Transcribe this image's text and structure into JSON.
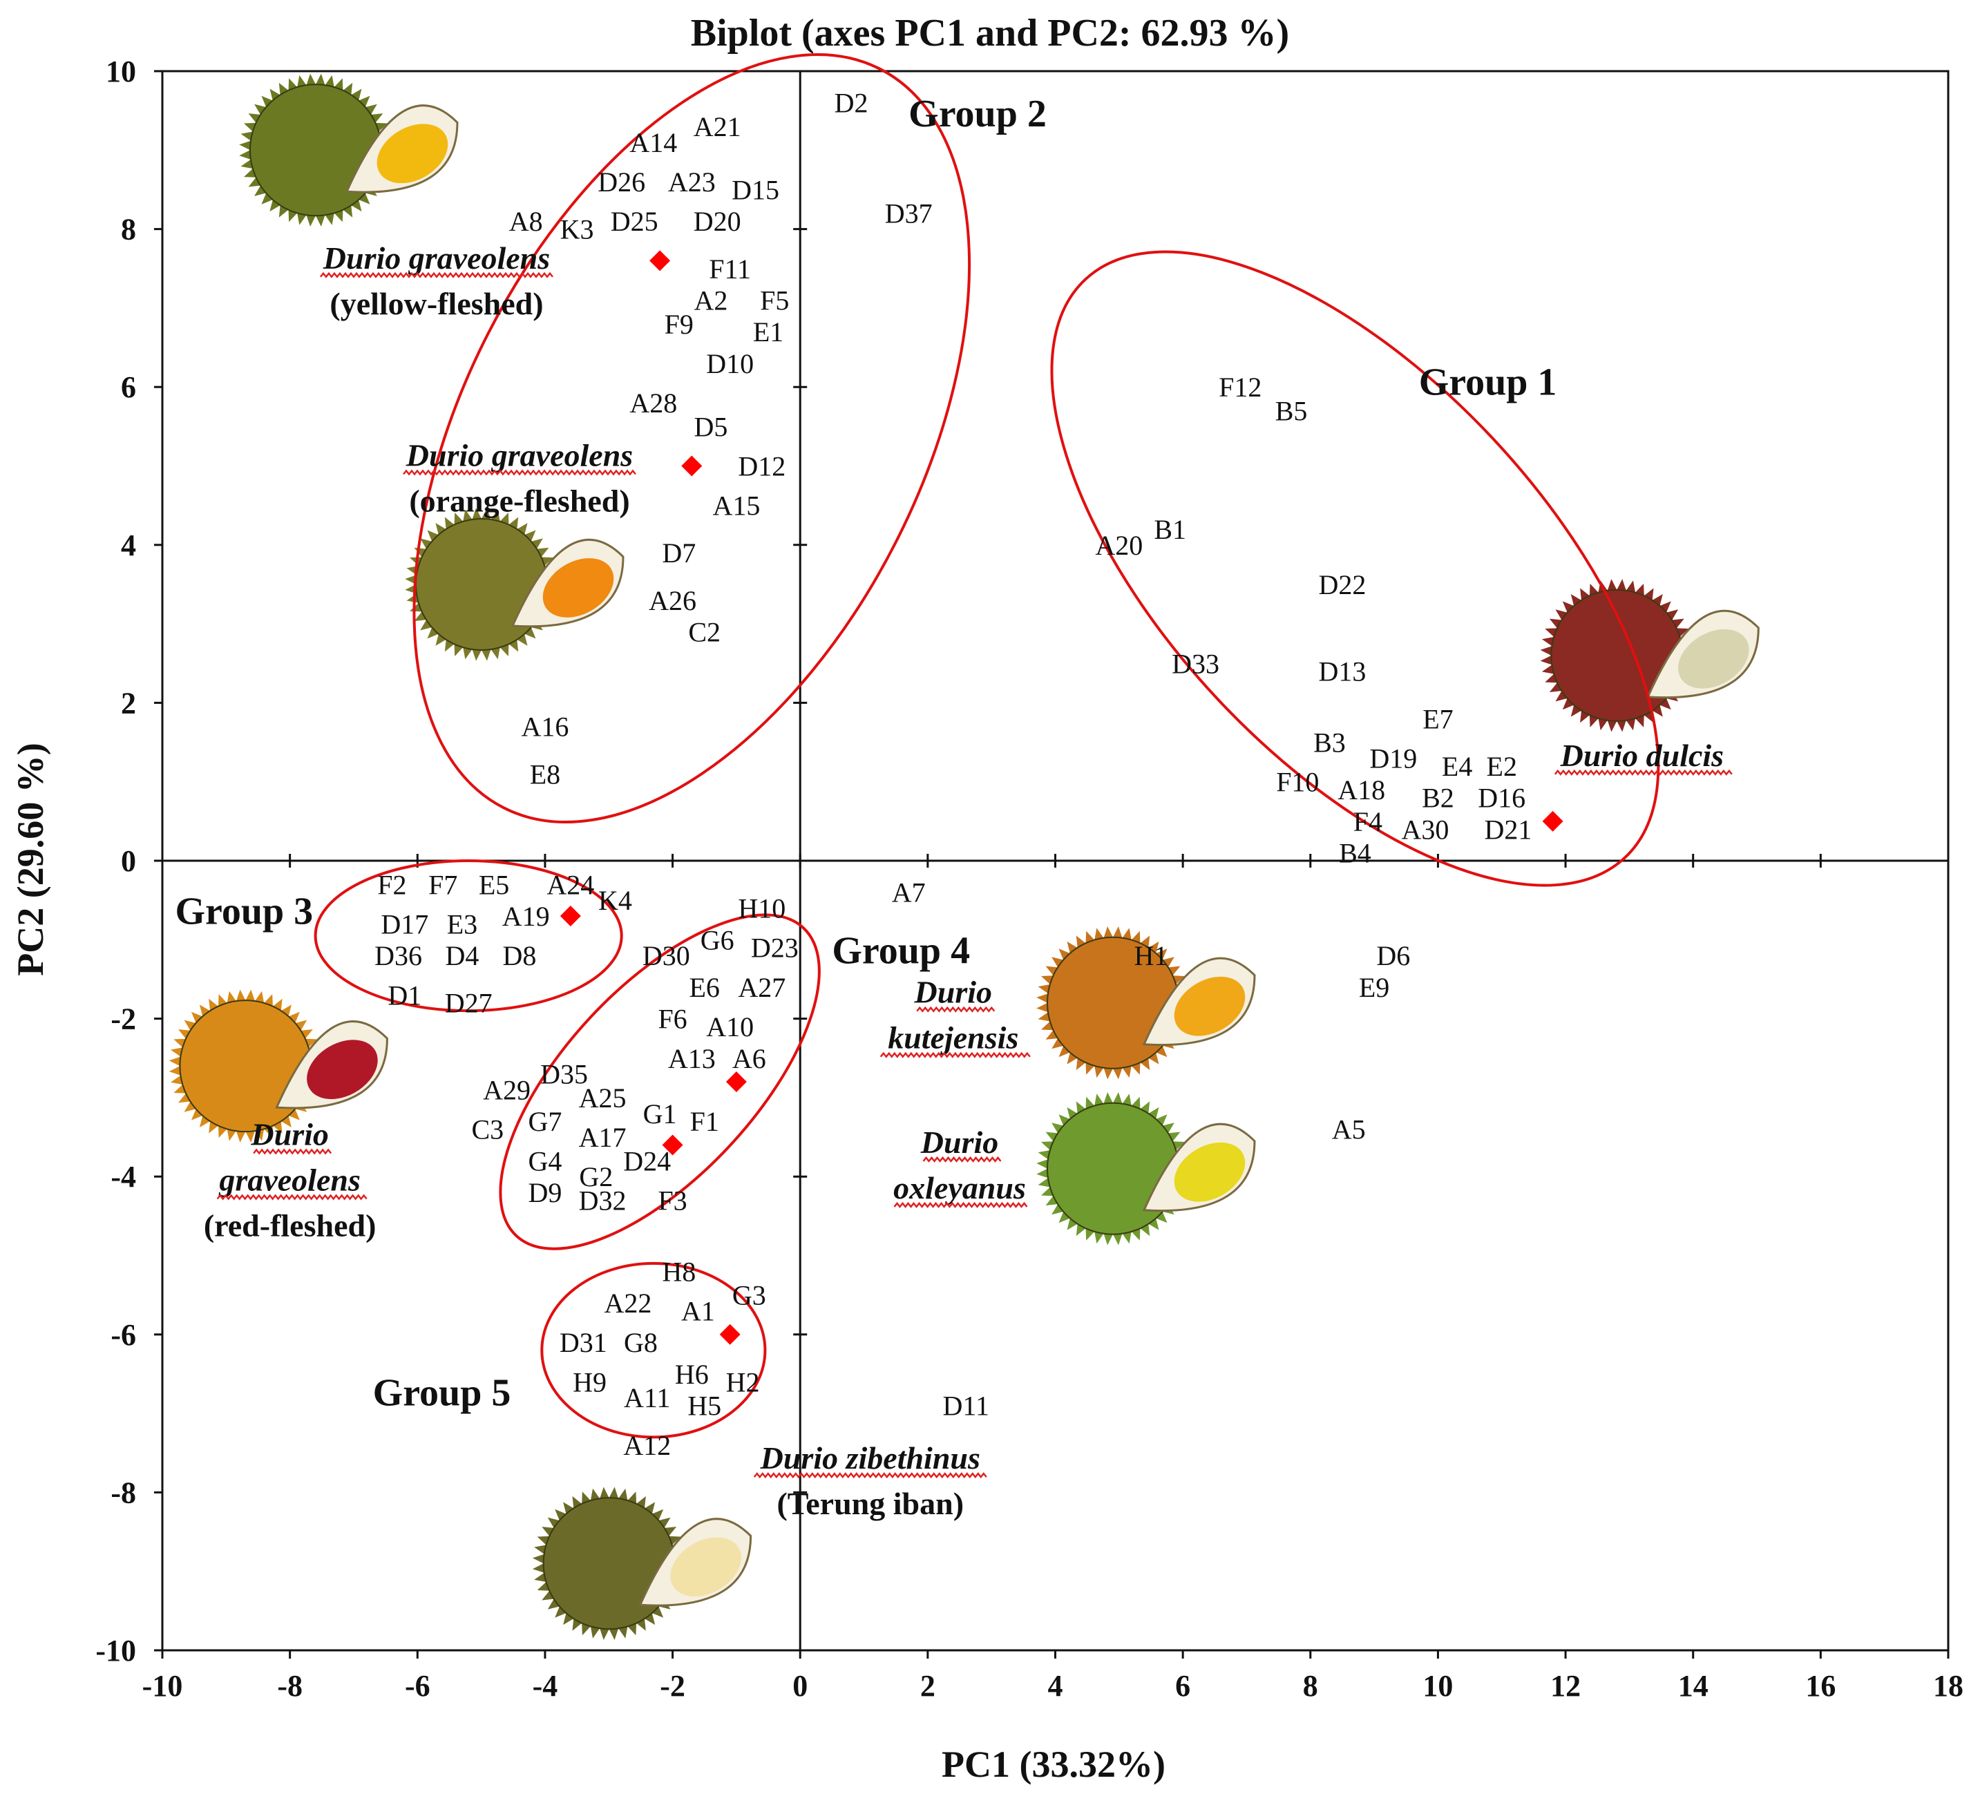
{
  "chart_data": {
    "type": "scatter",
    "title": "Biplot (axes PC1 and PC2: 62.93 %)",
    "xlabel": "PC1 (33.32%)",
    "ylabel": "PC2 (29.60 %)",
    "xlim": [
      -10,
      18
    ],
    "ylim": [
      -10,
      10
    ],
    "x_ticks": [
      -10,
      -8,
      -6,
      -4,
      -2,
      0,
      2,
      4,
      6,
      8,
      10,
      12,
      14,
      16,
      18
    ],
    "y_ticks": [
      -10,
      -8,
      -6,
      -4,
      -2,
      0,
      2,
      4,
      6,
      8,
      10
    ],
    "x_tick_labels": [
      "-10",
      "-8",
      "-6",
      "-4",
      "-2",
      "0",
      "2",
      "4",
      "6",
      "8",
      "10",
      "12",
      "14",
      "16",
      "18"
    ],
    "y_tick_labels": [
      "-10",
      "-8",
      "-6",
      "-4",
      "-2",
      "0",
      "2",
      "4",
      "6",
      "8",
      "10"
    ],
    "observations": [
      {
        "label": "A14",
        "x": -2.3,
        "y": 9.1
      },
      {
        "label": "A21",
        "x": -1.3,
        "y": 9.3
      },
      {
        "label": "D2",
        "x": 0.8,
        "y": 9.6
      },
      {
        "label": "D26",
        "x": -2.8,
        "y": 8.6
      },
      {
        "label": "A23",
        "x": -1.7,
        "y": 8.6
      },
      {
        "label": "D15",
        "x": -0.7,
        "y": 8.5
      },
      {
        "label": "A8",
        "x": -4.3,
        "y": 8.1
      },
      {
        "label": "K3",
        "x": -3.5,
        "y": 8.0
      },
      {
        "label": "D25",
        "x": -2.6,
        "y": 8.1
      },
      {
        "label": "D20",
        "x": -1.3,
        "y": 8.1
      },
      {
        "label": "D37",
        "x": 1.7,
        "y": 8.2
      },
      {
        "label": "F11",
        "x": -1.1,
        "y": 7.5
      },
      {
        "label": "A2",
        "x": -1.4,
        "y": 7.1
      },
      {
        "label": "F5",
        "x": -0.4,
        "y": 7.1
      },
      {
        "label": "F9",
        "x": -1.9,
        "y": 6.8
      },
      {
        "label": "E1",
        "x": -0.5,
        "y": 6.7
      },
      {
        "label": "D10",
        "x": -1.1,
        "y": 6.3
      },
      {
        "label": "A28",
        "x": -2.3,
        "y": 5.8
      },
      {
        "label": "D5",
        "x": -1.4,
        "y": 5.5
      },
      {
        "label": "D12",
        "x": -0.6,
        "y": 5.0
      },
      {
        "label": "A15",
        "x": -1.0,
        "y": 4.5
      },
      {
        "label": "D7",
        "x": -1.9,
        "y": 3.9
      },
      {
        "label": "A26",
        "x": -2.0,
        "y": 3.3
      },
      {
        "label": "C2",
        "x": -1.5,
        "y": 2.9
      },
      {
        "label": "A16",
        "x": -4.0,
        "y": 1.7
      },
      {
        "label": "E8",
        "x": -4.0,
        "y": 1.1
      },
      {
        "label": "F12",
        "x": 6.9,
        "y": 6.0
      },
      {
        "label": "B5",
        "x": 7.7,
        "y": 5.7
      },
      {
        "label": "A20",
        "x": 5.0,
        "y": 4.0
      },
      {
        "label": "B1",
        "x": 5.8,
        "y": 4.2
      },
      {
        "label": "D22",
        "x": 8.5,
        "y": 3.5
      },
      {
        "label": "D33",
        "x": 6.2,
        "y": 2.5
      },
      {
        "label": "D13",
        "x": 8.5,
        "y": 2.4
      },
      {
        "label": "E7",
        "x": 10.0,
        "y": 1.8
      },
      {
        "label": "B3",
        "x": 8.3,
        "y": 1.5
      },
      {
        "label": "D19",
        "x": 9.3,
        "y": 1.3
      },
      {
        "label": "E4",
        "x": 10.3,
        "y": 1.2
      },
      {
        "label": "E2",
        "x": 11.0,
        "y": 1.2
      },
      {
        "label": "F10",
        "x": 7.8,
        "y": 1.0
      },
      {
        "label": "A18",
        "x": 8.8,
        "y": 0.9
      },
      {
        "label": "B2",
        "x": 10.0,
        "y": 0.8
      },
      {
        "label": "D16",
        "x": 11.0,
        "y": 0.8
      },
      {
        "label": "F4",
        "x": 8.9,
        "y": 0.5
      },
      {
        "label": "A30",
        "x": 9.8,
        "y": 0.4
      },
      {
        "label": "D21",
        "x": 11.1,
        "y": 0.4
      },
      {
        "label": "B4",
        "x": 8.7,
        "y": 0.1
      },
      {
        "label": "F2",
        "x": -6.4,
        "y": -0.3
      },
      {
        "label": "F7",
        "x": -5.6,
        "y": -0.3
      },
      {
        "label": "E5",
        "x": -4.8,
        "y": -0.3
      },
      {
        "label": "A24",
        "x": -3.6,
        "y": -0.3
      },
      {
        "label": "K4",
        "x": -2.9,
        "y": -0.5
      },
      {
        "label": "D17",
        "x": -6.2,
        "y": -0.8
      },
      {
        "label": "E3",
        "x": -5.3,
        "y": -0.8
      },
      {
        "label": "A19",
        "x": -4.3,
        "y": -0.7
      },
      {
        "label": "D36",
        "x": -6.3,
        "y": -1.2
      },
      {
        "label": "D4",
        "x": -5.3,
        "y": -1.2
      },
      {
        "label": "D8",
        "x": -4.4,
        "y": -1.2
      },
      {
        "label": "D1",
        "x": -6.2,
        "y": -1.7
      },
      {
        "label": "D27",
        "x": -5.2,
        "y": -1.8
      },
      {
        "label": "H10",
        "x": -0.6,
        "y": -0.6
      },
      {
        "label": "G6",
        "x": -1.3,
        "y": -1.0
      },
      {
        "label": "D23",
        "x": -0.4,
        "y": -1.1
      },
      {
        "label": "D30",
        "x": -2.1,
        "y": -1.2
      },
      {
        "label": "E6",
        "x": -1.5,
        "y": -1.6
      },
      {
        "label": "A27",
        "x": -0.6,
        "y": -1.6
      },
      {
        "label": "F6",
        "x": -2.0,
        "y": -2.0
      },
      {
        "label": "A10",
        "x": -1.1,
        "y": -2.1
      },
      {
        "label": "A13",
        "x": -1.7,
        "y": -2.5
      },
      {
        "label": "A6",
        "x": -0.8,
        "y": -2.5
      },
      {
        "label": "A29",
        "x": -4.6,
        "y": -2.9
      },
      {
        "label": "D35",
        "x": -3.7,
        "y": -2.7
      },
      {
        "label": "A25",
        "x": -3.1,
        "y": -3.0
      },
      {
        "label": "C3",
        "x": -4.9,
        "y": -3.4
      },
      {
        "label": "G7",
        "x": -4.0,
        "y": -3.3
      },
      {
        "label": "A17",
        "x": -3.1,
        "y": -3.5
      },
      {
        "label": "G1",
        "x": -2.2,
        "y": -3.2
      },
      {
        "label": "F1",
        "x": -1.5,
        "y": -3.3
      },
      {
        "label": "G4",
        "x": -4.0,
        "y": -3.8
      },
      {
        "label": "G2",
        "x": -3.2,
        "y": -4.0
      },
      {
        "label": "D24",
        "x": -2.4,
        "y": -3.8
      },
      {
        "label": "D9",
        "x": -4.0,
        "y": -4.2
      },
      {
        "label": "D32",
        "x": -3.1,
        "y": -4.3
      },
      {
        "label": "F3",
        "x": -2.0,
        "y": -4.3
      },
      {
        "label": "A7",
        "x": 1.7,
        "y": -0.4
      },
      {
        "label": "H1",
        "x": 5.5,
        "y": -1.2
      },
      {
        "label": "D6",
        "x": 9.3,
        "y": -1.2
      },
      {
        "label": "E9",
        "x": 9.0,
        "y": -1.6
      },
      {
        "label": "A5",
        "x": 8.6,
        "y": -3.4
      },
      {
        "label": "D11",
        "x": 2.6,
        "y": -6.9
      },
      {
        "label": "H8",
        "x": -1.9,
        "y": -5.2
      },
      {
        "label": "A22",
        "x": -2.7,
        "y": -5.6
      },
      {
        "label": "A1",
        "x": -1.6,
        "y": -5.7
      },
      {
        "label": "G3",
        "x": -0.8,
        "y": -5.5
      },
      {
        "label": "D31",
        "x": -3.4,
        "y": -6.1
      },
      {
        "label": "G8",
        "x": -2.5,
        "y": -6.1
      },
      {
        "label": "H6",
        "x": -1.7,
        "y": -6.5
      },
      {
        "label": "H2",
        "x": -0.9,
        "y": -6.6
      },
      {
        "label": "H9",
        "x": -3.3,
        "y": -6.6
      },
      {
        "label": "A11",
        "x": -2.4,
        "y": -6.8
      },
      {
        "label": "H5",
        "x": -1.5,
        "y": -6.9
      },
      {
        "label": "A12",
        "x": -2.4,
        "y": -7.4
      }
    ],
    "centroids": [
      {
        "name": "Durio graveolens (yellow-fleshed)",
        "x": -2.2,
        "y": 7.6
      },
      {
        "name": "Durio graveolens (orange-fleshed)",
        "x": -1.7,
        "y": 5.0
      },
      {
        "name": "Durio dulcis",
        "x": 11.8,
        "y": 0.5
      },
      {
        "name": "Durio graveolens (red-fleshed)",
        "x": -3.6,
        "y": -0.7
      },
      {
        "name": "Durio kutejensis",
        "x": -1.0,
        "y": -2.8
      },
      {
        "name": "Durio oxleyanus",
        "x": -2.0,
        "y": -3.6
      },
      {
        "name": "Durio zibethinus (Terung iban)",
        "x": -1.1,
        "y": -6.0
      }
    ],
    "groups": [
      {
        "label": "Group 1",
        "label_at": [
          9.7,
          5.9
        ],
        "ellipse": {
          "cx": 8.7,
          "cy": 3.7,
          "rx": 6.2,
          "ry": 2.4,
          "angle": -47
        }
      },
      {
        "label": "Group 2",
        "label_at": [
          1.7,
          9.3
        ],
        "ellipse": {
          "cx": -1.7,
          "cy": 5.35,
          "rx": 6.5,
          "ry": 2.9,
          "angle": 63
        }
      },
      {
        "label": "Group 3",
        "label_at": [
          -9.8,
          -0.8
        ],
        "ellipse": {
          "cx": -5.2,
          "cy": -0.95,
          "rx": 2.4,
          "ry": 0.95,
          "angle": 0
        }
      },
      {
        "label": "Group 4",
        "label_at": [
          0.5,
          -1.3
        ],
        "ellipse": {
          "cx": -2.2,
          "cy": -2.8,
          "rx": 3.3,
          "ry": 1.2,
          "angle": 47
        }
      },
      {
        "label": "Group 5",
        "label_at": [
          -6.7,
          -6.9
        ],
        "ellipse": {
          "cx": -2.3,
          "cy": -6.2,
          "rx": 1.75,
          "ry": 1.1,
          "angle": 0
        }
      }
    ],
    "species_labels": [
      {
        "id": "yellow",
        "lines": [
          "Durio graveolens",
          "(yellow-fleshed)"
        ],
        "italic": [
          true,
          false
        ],
        "at": [
          -5.7,
          7.5
        ]
      },
      {
        "id": "orange",
        "lines": [
          "Durio graveolens",
          "(orange-fleshed)"
        ],
        "italic": [
          true,
          false
        ],
        "at": [
          -4.4,
          5.0
        ]
      },
      {
        "id": "dulcis",
        "lines": [
          "Durio dulcis"
        ],
        "italic": [
          true
        ],
        "at": [
          13.2,
          1.2
        ]
      },
      {
        "id": "red",
        "lines": [
          "Durio",
          "graveolens",
          "(red-fleshed)"
        ],
        "italic": [
          true,
          true,
          false
        ],
        "at": [
          -8.0,
          -3.6
        ]
      },
      {
        "id": "kutejensis",
        "lines": [
          "Durio",
          "kutejensis"
        ],
        "italic": [
          true,
          true
        ],
        "at": [
          2.4,
          -1.8
        ]
      },
      {
        "id": "oxleyanus",
        "lines": [
          "Durio",
          "oxleyanus"
        ],
        "italic": [
          true,
          true
        ],
        "at": [
          2.5,
          -3.7
        ]
      },
      {
        "id": "zibethinus",
        "lines": [
          "Durio zibethinus",
          "(Terung iban)"
        ],
        "italic": [
          true,
          false
        ],
        "at": [
          1.1,
          -7.7
        ]
      }
    ],
    "fruit_images": [
      {
        "id": "yellow",
        "flesh": "#f2b90f",
        "rind": "#6b7a22",
        "at": [
          -7.0,
          9.0
        ]
      },
      {
        "id": "orange",
        "flesh": "#f08a10",
        "rind": "#7c7a2a",
        "at": [
          -4.4,
          3.5
        ]
      },
      {
        "id": "dulcis",
        "flesh": "#d8d4b0",
        "rind": "#8a2a22",
        "at": [
          13.4,
          2.6
        ]
      },
      {
        "id": "red",
        "flesh": "#b01828",
        "rind": "#d88a18",
        "at": [
          -8.1,
          -2.6
        ]
      },
      {
        "id": "kutejensis",
        "flesh": "#f0a818",
        "rind": "#c8741c",
        "at": [
          5.5,
          -1.8
        ]
      },
      {
        "id": "oxleyanus",
        "flesh": "#e8d820",
        "rind": "#6e9a2e",
        "at": [
          5.5,
          -3.9
        ]
      },
      {
        "id": "zibethinus",
        "flesh": "#f2e2a8",
        "rind": "#6b6a28",
        "at": [
          -2.4,
          -8.9
        ]
      }
    ],
    "colors": {
      "marker": "#ff0000",
      "ellipse": "#e01010",
      "axis": "#111111",
      "squiggle": "#e02020"
    }
  }
}
